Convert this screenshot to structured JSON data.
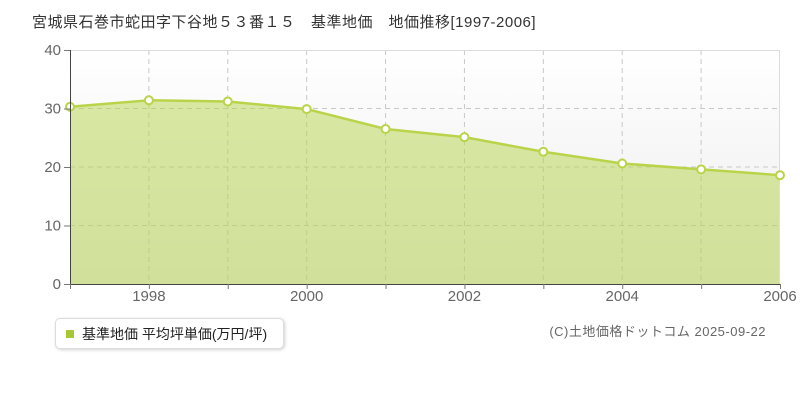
{
  "page": {
    "title": "宮城県石巻市蛇田字下谷地５３番１５　基準地価　地価推移[1997-2006]"
  },
  "legend": {
    "label": "基準地価 平均坪単価(万円/坪)",
    "marker_color": "#a6c832"
  },
  "footer": {
    "copyright": "(C)土地価格ドットコム 2025-09-22"
  },
  "chart_data": {
    "type": "area",
    "title": "宮城県石巻市蛇田字下谷地５３番１５　基準地価　地価推移[1997-2006]",
    "x": [
      1997,
      1998,
      1999,
      2000,
      2001,
      2002,
      2003,
      2004,
      2005,
      2006
    ],
    "series": [
      {
        "name": "基準地価 平均坪単価(万円/坪)",
        "values": [
          30.3,
          31.4,
          31.2,
          29.9,
          26.5,
          25.1,
          22.6,
          20.6,
          19.6,
          18.6
        ]
      }
    ],
    "unit": "万円/坪",
    "xlabel": "",
    "ylabel": "",
    "ylim": [
      0,
      40
    ],
    "yticks": [
      0,
      10,
      20,
      30,
      40
    ],
    "xticks": [
      1998,
      2000,
      2002,
      2004,
      2006
    ],
    "grid": "dashed",
    "legend_position": "bottom-left",
    "colors": {
      "line": "#b9d44a",
      "fill": "rgba(181,213,76,0.5)",
      "point_fill": "#ffffff",
      "grid": "#c8c8c8",
      "axis": "#444444",
      "tick": "#777777",
      "border": "#dcdcdc",
      "tick_label": "#666666",
      "plot_bg_top": "#ffffff",
      "plot_bg_bottom": "#ececec"
    }
  }
}
